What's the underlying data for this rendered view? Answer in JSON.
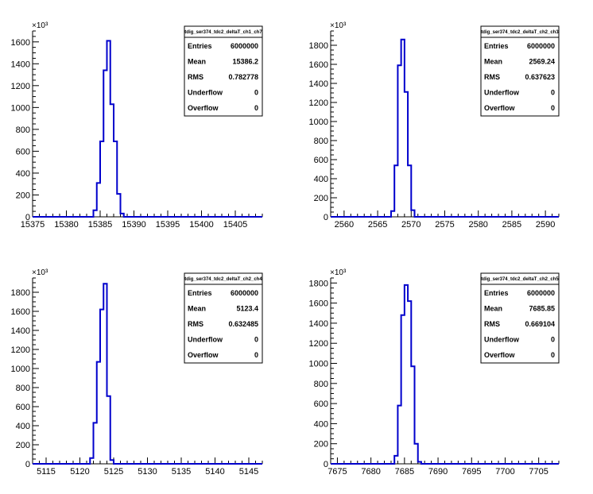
{
  "colors": {
    "histogram": "#0000cc",
    "axis": "#000000",
    "background": "#ffffff"
  },
  "chart_data": [
    {
      "type": "histogram",
      "panel": "top-left",
      "title": "tdig_ser374_tdc2_deltaT_ch1_ch7",
      "xlim": [
        15375,
        15409
      ],
      "ylim": [
        0,
        1700
      ],
      "y_exponent_label": "×10³",
      "x_ticks": [
        15375,
        15380,
        15385,
        15390,
        15395,
        15400,
        15405
      ],
      "y_ticks": [
        0,
        200,
        400,
        600,
        800,
        1000,
        1200,
        1400,
        1600
      ],
      "bins": [
        {
          "x0": 15384,
          "x1": 15384.5,
          "y": 60
        },
        {
          "x0": 15384.5,
          "x1": 15385,
          "y": 310
        },
        {
          "x0": 15385,
          "x1": 15385.5,
          "y": 690
        },
        {
          "x0": 15385.5,
          "x1": 15386,
          "y": 1340
        },
        {
          "x0": 15386,
          "x1": 15386.5,
          "y": 1610
        },
        {
          "x0": 15386.5,
          "x1": 15387,
          "y": 1030
        },
        {
          "x0": 15387,
          "x1": 15387.5,
          "y": 690
        },
        {
          "x0": 15387.5,
          "x1": 15388,
          "y": 210
        },
        {
          "x0": 15388,
          "x1": 15388.5,
          "y": 30
        }
      ],
      "stats": [
        {
          "key": "Entries",
          "value": "6000000"
        },
        {
          "key": "Mean",
          "value": "15386.2"
        },
        {
          "key": "RMS",
          "value": "0.782778"
        },
        {
          "key": "Underflow",
          "value": "0"
        },
        {
          "key": "Overflow",
          "value": "0"
        }
      ]
    },
    {
      "type": "histogram",
      "panel": "top-right",
      "title": "tdig_ser374_tdc2_deltaT_ch2_ch3",
      "xlim": [
        2558,
        2592
      ],
      "ylim": [
        0,
        1950
      ],
      "y_exponent_label": "×10³",
      "x_ticks": [
        2560,
        2565,
        2570,
        2575,
        2580,
        2585,
        2590
      ],
      "y_ticks": [
        0,
        200,
        400,
        600,
        800,
        1000,
        1200,
        1400,
        1600,
        1800
      ],
      "bins": [
        {
          "x0": 2567,
          "x1": 2567.5,
          "y": 60
        },
        {
          "x0": 2567.5,
          "x1": 2568,
          "y": 540
        },
        {
          "x0": 2568,
          "x1": 2568.5,
          "y": 1590
        },
        {
          "x0": 2568.5,
          "x1": 2569,
          "y": 1860
        },
        {
          "x0": 2569,
          "x1": 2569.5,
          "y": 1310
        },
        {
          "x0": 2569.5,
          "x1": 2570,
          "y": 540
        },
        {
          "x0": 2570,
          "x1": 2570.5,
          "y": 70
        }
      ],
      "stats": [
        {
          "key": "Entries",
          "value": "6000000"
        },
        {
          "key": "Mean",
          "value": "2569.24"
        },
        {
          "key": "RMS",
          "value": "0.637623"
        },
        {
          "key": "Underflow",
          "value": "0"
        },
        {
          "key": "Overflow",
          "value": "0"
        }
      ]
    },
    {
      "type": "histogram",
      "panel": "bottom-left",
      "title": "tdig_ser374_tdc2_deltaT_ch2_ch4",
      "xlim": [
        5113,
        5147
      ],
      "ylim": [
        0,
        1950
      ],
      "y_exponent_label": "×10³",
      "x_ticks": [
        5115,
        5120,
        5125,
        5130,
        5135,
        5140,
        5145
      ],
      "y_ticks": [
        0,
        200,
        400,
        600,
        800,
        1000,
        1200,
        1400,
        1600,
        1800
      ],
      "bins": [
        {
          "x0": 5121.5,
          "x1": 5122,
          "y": 60
        },
        {
          "x0": 5122,
          "x1": 5122.5,
          "y": 430
        },
        {
          "x0": 5122.5,
          "x1": 5123,
          "y": 1070
        },
        {
          "x0": 5123,
          "x1": 5123.5,
          "y": 1620
        },
        {
          "x0": 5123.5,
          "x1": 5124,
          "y": 1890
        },
        {
          "x0": 5124,
          "x1": 5124.5,
          "y": 710
        },
        {
          "x0": 5124.5,
          "x1": 5125,
          "y": 40
        }
      ],
      "stats": [
        {
          "key": "Entries",
          "value": "6000000"
        },
        {
          "key": "Mean",
          "value": "5123.4"
        },
        {
          "key": "RMS",
          "value": "0.632485"
        },
        {
          "key": "Underflow",
          "value": "0"
        },
        {
          "key": "Overflow",
          "value": "0"
        }
      ]
    },
    {
      "type": "histogram",
      "panel": "bottom-right",
      "title": "tdig_ser374_tdc2_deltaT_ch2_ch5",
      "xlim": [
        7674,
        7708
      ],
      "ylim": [
        0,
        1850
      ],
      "y_exponent_label": "×10³",
      "x_ticks": [
        7675,
        7680,
        7685,
        7690,
        7695,
        7700,
        7705
      ],
      "y_ticks": [
        0,
        200,
        400,
        600,
        800,
        1000,
        1200,
        1400,
        1600,
        1800
      ],
      "bins": [
        {
          "x0": 7683.5,
          "x1": 7684,
          "y": 80
        },
        {
          "x0": 7684,
          "x1": 7684.5,
          "y": 580
        },
        {
          "x0": 7684.5,
          "x1": 7685,
          "y": 1480
        },
        {
          "x0": 7685,
          "x1": 7685.5,
          "y": 1780
        },
        {
          "x0": 7685.5,
          "x1": 7686,
          "y": 1620
        },
        {
          "x0": 7686,
          "x1": 7686.5,
          "y": 970
        },
        {
          "x0": 7686.5,
          "x1": 7687,
          "y": 200
        },
        {
          "x0": 7687,
          "x1": 7687.5,
          "y": 20
        }
      ],
      "stats": [
        {
          "key": "Entries",
          "value": "6000000"
        },
        {
          "key": "Mean",
          "value": "7685.85"
        },
        {
          "key": "RMS",
          "value": "0.669104"
        },
        {
          "key": "Underflow",
          "value": "0"
        },
        {
          "key": "Overflow",
          "value": "0"
        }
      ]
    }
  ]
}
